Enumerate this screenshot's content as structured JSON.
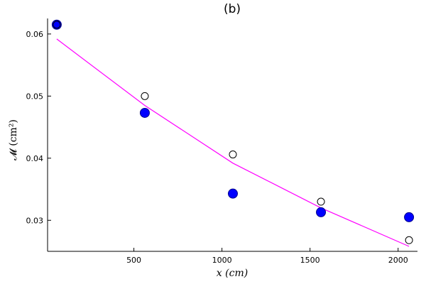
{
  "chart_data": {
    "type": "scatter",
    "title": "(b)",
    "xlabel": "x (cm)",
    "ylabel": "𝓜 (cm²)",
    "xlim": [
      10,
      2110
    ],
    "ylim": [
      0.025,
      0.0625
    ],
    "grid": false,
    "x_ticks": [
      500,
      1000,
      1500,
      2000
    ],
    "y_ticks": [
      0.03,
      0.04,
      0.05,
      0.06
    ],
    "x_tick_labels": [
      "500",
      "1000",
      "1500",
      "2000"
    ],
    "y_tick_labels": [
      "0.03",
      "0.04",
      "0.05",
      "0.06"
    ],
    "series": [
      {
        "style": "filled",
        "color": "#0000ff",
        "points": [
          [
            62,
            0.0615
          ],
          [
            562,
            0.0473
          ],
          [
            1062,
            0.0343
          ],
          [
            1562,
            0.0313
          ],
          [
            2062,
            0.0305
          ]
        ]
      },
      {
        "style": "open",
        "color": "#000000",
        "points": [
          [
            62,
            0.0615
          ],
          [
            562,
            0.05
          ],
          [
            1062,
            0.0406
          ],
          [
            1562,
            0.033
          ],
          [
            2062,
            0.0268
          ]
        ]
      },
      {
        "style": "line",
        "color": "#ff00ff",
        "points": [
          [
            62,
            0.0592
          ],
          [
            562,
            0.0485
          ],
          [
            1062,
            0.0392
          ],
          [
            1562,
            0.032
          ],
          [
            2062,
            0.0258
          ]
        ]
      }
    ]
  }
}
